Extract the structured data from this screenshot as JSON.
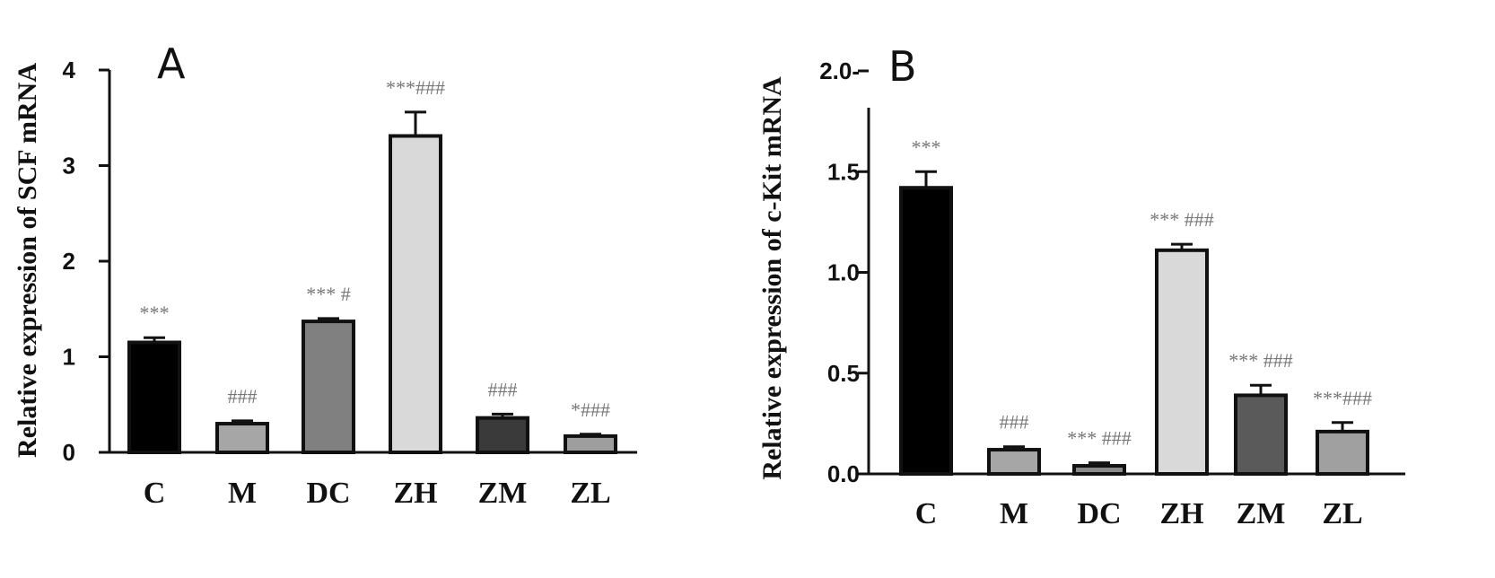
{
  "chart_data": [
    {
      "type": "bar",
      "panel": "A",
      "ylabel": "Relative expression of SCF mRNA",
      "categories": [
        "C",
        "M",
        "DC",
        "ZH",
        "ZM",
        "ZL"
      ],
      "values": [
        1.15,
        0.3,
        1.37,
        3.31,
        0.36,
        0.17
      ],
      "errors": [
        0.05,
        0.03,
        0.03,
        0.25,
        0.04,
        0.02
      ],
      "annotations": [
        "***",
        "###",
        "*** #",
        "***###",
        "###",
        "*###"
      ],
      "colors": [
        "#000000",
        "#a6a6a6",
        "#808080",
        "#d9d9d9",
        "#3a3a3a",
        "#9e9e9e"
      ],
      "ylim": [
        0,
        4
      ],
      "yticks": [
        "0",
        "1",
        "2",
        "3",
        "4"
      ]
    },
    {
      "type": "bar",
      "panel": "B",
      "ylabel": "Relative expression of  c-Kit mRNA",
      "categories": [
        "C",
        "M",
        "DC",
        "ZH",
        "ZM",
        "ZL"
      ],
      "values": [
        1.42,
        0.12,
        0.04,
        1.11,
        0.39,
        0.21
      ],
      "errors": [
        0.08,
        0.015,
        0.015,
        0.03,
        0.05,
        0.045
      ],
      "annotations": [
        "***",
        "###",
        "*** ###",
        "*** ###",
        "*** ###",
        "***###"
      ],
      "colors": [
        "#000000",
        "#a6a6a6",
        "#8a8a8a",
        "#d9d9d9",
        "#5a5a5a",
        "#a0a0a0"
      ],
      "ylim": [
        0,
        2.0
      ],
      "yticks": [
        "0.0",
        "0.5",
        "1.0",
        "1.5",
        "2.0-"
      ]
    }
  ]
}
